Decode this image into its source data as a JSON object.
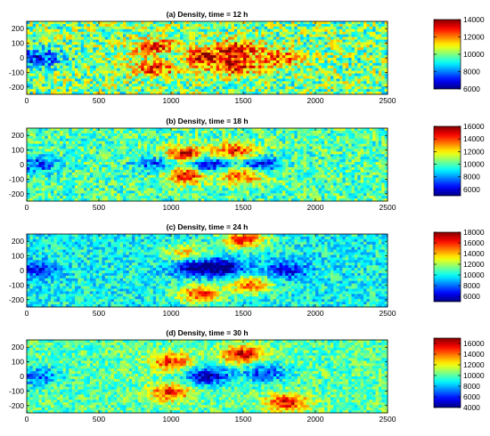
{
  "chart_data": [
    {
      "type": "heatmap",
      "title": "(a) Density, time = 12 h",
      "xlabel": "",
      "ylabel": "",
      "xlim": [
        0,
        2500
      ],
      "ylim": [
        -250,
        250
      ],
      "x_ticks": [
        "0",
        "500",
        "1000",
        "1500",
        "2000",
        "2500"
      ],
      "y_ticks": [
        "200",
        "100",
        "0",
        "-100",
        "-200"
      ],
      "colorbar": {
        "min": 6000,
        "max": 14000,
        "ticks": [
          "14000",
          "12000",
          "10000",
          "8000",
          "6000"
        ]
      },
      "colormap": "jet",
      "background_value": 10000,
      "features": [
        {
          "x": 1200,
          "y": 0,
          "amp": 3500
        },
        {
          "x": 900,
          "y": 70,
          "amp": 3000
        },
        {
          "x": 900,
          "y": -70,
          "amp": 3000
        },
        {
          "x": 1450,
          "y": 60,
          "amp": 3000
        },
        {
          "x": 1450,
          "y": -60,
          "amp": 3000
        },
        {
          "x": 1750,
          "y": 0,
          "amp": 2500
        },
        {
          "x": 1000,
          "y": 0,
          "amp": -2000
        },
        {
          "x": 80,
          "y": 0,
          "amp": -3000
        }
      ]
    },
    {
      "type": "heatmap",
      "title": "(b) Density, time = 18 h",
      "xlabel": "",
      "ylabel": "",
      "xlim": [
        0,
        2500
      ],
      "ylim": [
        -250,
        250
      ],
      "x_ticks": [
        "0",
        "500",
        "1000",
        "1500",
        "2000",
        "2500"
      ],
      "y_ticks": [
        "200",
        "100",
        "0",
        "-100",
        "-200"
      ],
      "colorbar": {
        "min": 5000,
        "max": 16000,
        "ticks": [
          "16000",
          "14000",
          "12000",
          "10000",
          "8000",
          "6000"
        ]
      },
      "colormap": "jet",
      "background_value": 10000,
      "features": [
        {
          "x": 1100,
          "y": 70,
          "amp": 5000
        },
        {
          "x": 1100,
          "y": -70,
          "amp": 5000
        },
        {
          "x": 1450,
          "y": 90,
          "amp": 4500
        },
        {
          "x": 1500,
          "y": -70,
          "amp": 4500
        },
        {
          "x": 1250,
          "y": 0,
          "amp": -4500
        },
        {
          "x": 1600,
          "y": 0,
          "amp": -4000
        },
        {
          "x": 900,
          "y": 0,
          "amp": -3000
        },
        {
          "x": 80,
          "y": 0,
          "amp": -3000
        }
      ]
    },
    {
      "type": "heatmap",
      "title": "(c) Density, time = 24 h",
      "xlabel": "",
      "ylabel": "",
      "xlim": [
        0,
        2500
      ],
      "ylim": [
        -250,
        250
      ],
      "x_ticks": [
        "0",
        "500",
        "1000",
        "1500",
        "2000",
        "2500"
      ],
      "y_ticks": [
        "200",
        "100",
        "0",
        "-100",
        "-200"
      ],
      "colorbar": {
        "min": 5000,
        "max": 18000,
        "ticks": [
          "18000",
          "16000",
          "14000",
          "12000",
          "10000",
          "8000",
          "6000"
        ]
      },
      "colormap": "jet",
      "background_value": 10000,
      "features": [
        {
          "x": 1200,
          "y": -160,
          "amp": 6000
        },
        {
          "x": 1500,
          "y": 210,
          "amp": 6000
        },
        {
          "x": 1550,
          "y": -100,
          "amp": 5000
        },
        {
          "x": 1100,
          "y": 120,
          "amp": 3500
        },
        {
          "x": 1350,
          "y": 20,
          "amp": -5000
        },
        {
          "x": 1150,
          "y": 20,
          "amp": -4000
        },
        {
          "x": 1800,
          "y": 0,
          "amp": -3500
        },
        {
          "x": 80,
          "y": 0,
          "amp": -3000
        }
      ]
    },
    {
      "type": "heatmap",
      "title": "(d) Density, time = 30 h",
      "xlabel": "",
      "ylabel": "",
      "xlim": [
        0,
        2500
      ],
      "ylim": [
        -250,
        250
      ],
      "x_ticks": [
        "0",
        "500",
        "1000",
        "1500",
        "2000",
        "2500"
      ],
      "y_ticks": [
        "200",
        "100",
        "0",
        "-100",
        "-200"
      ],
      "colorbar": {
        "min": 4000,
        "max": 17000,
        "ticks": [
          "16000",
          "14000",
          "12000",
          "10000",
          "8000",
          "6000",
          "4000"
        ]
      },
      "colormap": "jet",
      "background_value": 10000,
      "features": [
        {
          "x": 1000,
          "y": 100,
          "amp": 5000
        },
        {
          "x": 1000,
          "y": -110,
          "amp": 5000
        },
        {
          "x": 1500,
          "y": 150,
          "amp": 6000
        },
        {
          "x": 1800,
          "y": -180,
          "amp": 5500
        },
        {
          "x": 1250,
          "y": 0,
          "amp": -5500
        },
        {
          "x": 1650,
          "y": 20,
          "amp": -4000
        },
        {
          "x": 80,
          "y": 0,
          "amp": -3000
        }
      ]
    }
  ]
}
